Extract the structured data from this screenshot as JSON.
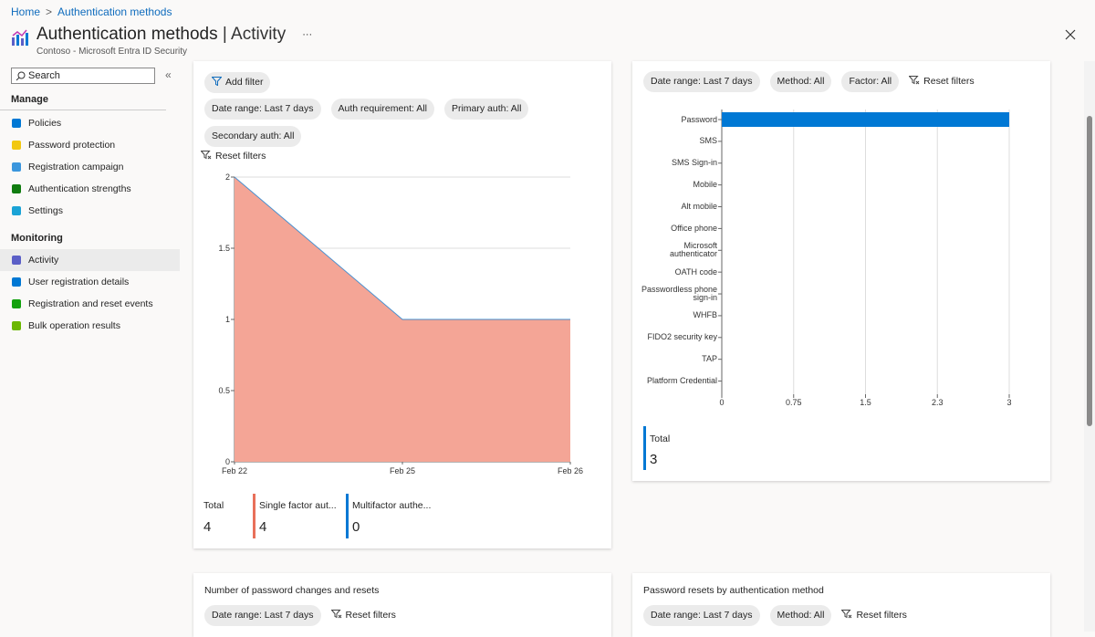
{
  "breadcrumb": [
    "Home",
    "Authentication methods"
  ],
  "header": {
    "title": "Authentication methods",
    "section": "| Activity",
    "subtitle": "Contoso - Microsoft Entra ID Security",
    "more": "···"
  },
  "sidebar": {
    "search": "Search",
    "groups": [
      {
        "label": "Manage",
        "items": [
          "Policies",
          "Password protection",
          "Registration campaign",
          "Authentication strengths",
          "Settings"
        ]
      },
      {
        "label": "Monitoring",
        "items": [
          "Activity",
          "User registration details",
          "Registration and reset events",
          "Bulk operation results"
        ]
      }
    ],
    "selected": {
      "group": 1,
      "item": 0
    }
  },
  "area_panel": {
    "add_filter": "Add filter",
    "filters": [
      "Date range: Last 7 days",
      "Auth requirement: All",
      "Primary auth: All",
      "Secondary auth: All"
    ],
    "reset": "Reset filters",
    "total": {
      "label": "Total",
      "value": 4
    }
  },
  "bar_panel": {
    "filters": [
      "Date range: Last 7 days",
      "Method: All",
      "Factor: All"
    ],
    "reset": "Reset filters",
    "total": {
      "label": "Total",
      "value": 3
    }
  },
  "bottom_panels": [
    {
      "title": "Number of password changes and resets",
      "filters": [
        "Date range: Last 7 days"
      ],
      "reset": "Reset filters"
    },
    {
      "title": "Password resets by authentication method",
      "filters": [
        "Date range: Last 7 days",
        "Method: All"
      ],
      "reset": "Reset filters"
    }
  ],
  "chart_data": [
    {
      "type": "area",
      "stacked": true,
      "categories": [
        "Feb 22",
        "Feb 25",
        "Feb 26"
      ],
      "series": [
        {
          "name": "Single factor aut...",
          "color": "#f4a596",
          "values": [
            2,
            1,
            1
          ],
          "total": 4
        },
        {
          "name": "Multifactor authe...",
          "color": "#0078d4",
          "values": [
            0,
            0,
            0
          ],
          "total": 0
        }
      ],
      "ylim": [
        0,
        2
      ],
      "yticks": [
        0,
        0.5,
        1,
        1.5,
        2
      ],
      "grid": true
    },
    {
      "type": "hbar",
      "categories": [
        "Password",
        "SMS",
        "SMS Sign-in",
        "Mobile",
        "Alt mobile",
        "Office phone",
        "Microsoft authenticator",
        "OATH code",
        "Passwordless phone sign-in",
        "WHFB",
        "FIDO2 security key",
        "TAP",
        "Platform Credential"
      ],
      "values": [
        3,
        0,
        0,
        0,
        0,
        0,
        0,
        0,
        0,
        0,
        0,
        0,
        0
      ],
      "color": "#0078d4",
      "xlim": [
        0,
        3
      ],
      "xticks": [
        0,
        0.75,
        1.5,
        {
          "value": 2.25,
          "label": "2.3"
        },
        3
      ],
      "grid": true
    }
  ]
}
